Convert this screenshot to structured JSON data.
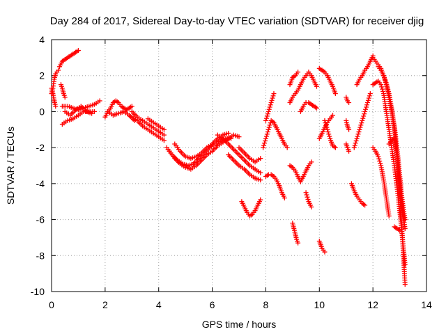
{
  "chart_data": {
    "type": "scatter",
    "title": "Day 284 of 2017, Sidereal Day-to-day VTEC variation (SDTVAR) for receiver djig",
    "xlabel": "GPS time / hours",
    "ylabel": "SDTVAR / TECUs",
    "xlim": [
      0,
      14
    ],
    "ylim": [
      -10,
      4
    ],
    "xticks": [
      "0",
      "2",
      "4",
      "6",
      "8",
      "10",
      "12",
      "14"
    ],
    "yticks": [
      "4",
      "2",
      "0",
      "-2",
      "-4",
      "-6",
      "-8",
      "-10"
    ],
    "grid": true,
    "marker": "+",
    "color": "#ff0000",
    "series": [
      {
        "x": [
          0.0,
          0.05,
          0.1,
          0.15,
          0.2,
          0.25
        ],
        "y": [
          1.0,
          1.3,
          1.8,
          2.1,
          2.2,
          2.3
        ]
      },
      {
        "x": [
          0.0,
          0.05,
          0.1,
          0.15
        ],
        "y": [
          1.3,
          1.0,
          0.6,
          0.3
        ]
      },
      {
        "x": [
          0.3,
          0.4,
          0.5,
          0.6,
          0.7,
          0.8,
          0.9,
          1.0
        ],
        "y": [
          2.5,
          2.8,
          2.9,
          3.0,
          3.1,
          3.2,
          3.3,
          3.4
        ]
      },
      {
        "x": [
          0.35,
          0.4,
          0.45,
          0.5
        ],
        "y": [
          1.5,
          1.3,
          1.0,
          0.8
        ]
      },
      {
        "x": [
          0.4,
          0.6,
          0.8,
          1.0,
          1.2,
          1.4,
          1.6,
          1.8
        ],
        "y": [
          0.3,
          0.3,
          0.2,
          0.1,
          0.2,
          0.3,
          0.4,
          0.6
        ]
      },
      {
        "x": [
          0.4,
          0.6,
          0.8,
          1.0,
          1.2,
          1.4,
          1.6
        ],
        "y": [
          -0.7,
          -0.5,
          -0.4,
          -0.2,
          0.0,
          0.0,
          0.0
        ]
      },
      {
        "x": [
          0.5,
          0.7,
          0.9,
          1.1,
          1.3,
          1.5
        ],
        "y": [
          0.0,
          -0.2,
          0.1,
          0.3,
          0.0,
          -0.1
        ]
      },
      {
        "x": [
          2.0,
          2.1,
          2.2,
          2.3,
          2.4,
          2.5,
          2.6,
          2.7,
          2.8,
          2.9,
          3.0
        ],
        "y": [
          -0.3,
          0.0,
          0.2,
          0.5,
          0.6,
          0.5,
          0.3,
          0.2,
          0.1,
          0.2,
          0.3
        ]
      },
      {
        "x": [
          2.1,
          2.3,
          2.5,
          2.7,
          2.9,
          3.1
        ],
        "y": [
          0.0,
          -0.2,
          -0.1,
          0.0,
          -0.2,
          -0.5
        ]
      },
      {
        "x": [
          3.0,
          3.2,
          3.4,
          3.6,
          3.8,
          4.0,
          4.2
        ],
        "y": [
          0.0,
          -0.3,
          -0.5,
          -0.7,
          -0.9,
          -1.1,
          -1.3
        ]
      },
      {
        "x": [
          3.0,
          3.2,
          3.4,
          3.6,
          3.8,
          4.0,
          4.2
        ],
        "y": [
          -0.3,
          -0.5,
          -0.8,
          -1.0,
          -1.2,
          -1.4,
          -1.6
        ]
      },
      {
        "x": [
          3.6,
          3.8,
          4.0,
          4.2
        ],
        "y": [
          -0.4,
          -0.6,
          -0.8,
          -1.0
        ]
      },
      {
        "x": [
          4.3,
          4.5,
          4.7,
          4.9,
          5.1,
          5.3,
          5.5,
          5.7,
          5.9,
          6.1,
          6.3,
          6.5,
          6.7
        ],
        "y": [
          -2.0,
          -2.4,
          -2.7,
          -2.9,
          -3.0,
          -2.9,
          -2.6,
          -2.3,
          -2.0,
          -1.8,
          -1.6,
          -1.5,
          -1.5
        ]
      },
      {
        "x": [
          4.4,
          4.6,
          4.8,
          5.0,
          5.2,
          5.4,
          5.6,
          5.8,
          6.0,
          6.2,
          6.4,
          6.6,
          6.8,
          7.0
        ],
        "y": [
          -2.2,
          -2.6,
          -2.9,
          -3.1,
          -3.2,
          -3.0,
          -2.7,
          -2.4,
          -2.2,
          -1.9,
          -1.7,
          -1.5,
          -1.3,
          -1.4
        ]
      },
      {
        "x": [
          4.6,
          4.8,
          5.0,
          5.2,
          5.4,
          5.6,
          5.8,
          6.0,
          6.2,
          6.4,
          6.6
        ],
        "y": [
          -1.8,
          -2.2,
          -2.5,
          -2.6,
          -2.5,
          -2.3,
          -2.0,
          -1.8,
          -1.5,
          -1.3,
          -1.2
        ]
      },
      {
        "x": [
          6.2,
          6.4,
          6.6,
          6.8,
          7.0,
          7.2,
          7.4,
          7.6,
          7.8
        ],
        "y": [
          -1.3,
          -1.5,
          -1.8,
          -2.1,
          -2.4,
          -2.7,
          -3.0,
          -3.2,
          -3.4
        ]
      },
      {
        "x": [
          6.6,
          6.8,
          7.0,
          7.2,
          7.4,
          7.6,
          7.8
        ],
        "y": [
          -2.4,
          -2.7,
          -3.0,
          -3.2,
          -3.5,
          -3.7,
          -3.8
        ]
      },
      {
        "x": [
          7.0,
          7.2,
          7.4,
          7.6,
          7.8
        ],
        "y": [
          -2.0,
          -2.3,
          -2.6,
          -2.8,
          -2.6
        ]
      },
      {
        "x": [
          7.1,
          7.2,
          7.3,
          7.4,
          7.5,
          7.6,
          7.7,
          7.8
        ],
        "y": [
          -5.0,
          -5.3,
          -5.6,
          -5.8,
          -5.7,
          -5.5,
          -5.2,
          -4.9
        ]
      },
      {
        "x": [
          7.9,
          8.0,
          8.1,
          8.2,
          8.3,
          8.4,
          8.5,
          8.6,
          8.7,
          8.8
        ],
        "y": [
          -2.0,
          -1.5,
          -1.0,
          -0.5,
          -0.6,
          -0.9,
          -1.2,
          -1.5,
          -1.8,
          -2.0
        ]
      },
      {
        "x": [
          8.0,
          8.1,
          8.2,
          8.3,
          8.4,
          8.5,
          8.6,
          8.7
        ],
        "y": [
          -3.6,
          -3.5,
          -3.5,
          -3.6,
          -3.8,
          -4.1,
          -4.5,
          -4.8
        ]
      },
      {
        "x": [
          8.0,
          8.1,
          8.2,
          8.3
        ],
        "y": [
          -0.5,
          0.0,
          0.5,
          1.0
        ]
      },
      {
        "x": [
          8.9,
          9.0,
          9.1,
          9.2,
          9.3,
          9.4,
          9.5,
          9.6,
          9.7,
          9.8,
          9.9
        ],
        "y": [
          0.5,
          0.8,
          1.0,
          1.2,
          1.5,
          1.8,
          2.0,
          2.2,
          2.0,
          1.7,
          1.4
        ]
      },
      {
        "x": [
          8.9,
          9.0,
          9.1,
          9.2
        ],
        "y": [
          1.5,
          1.9,
          2.0,
          2.2
        ]
      },
      {
        "x": [
          8.9,
          9.0,
          9.1,
          9.2,
          9.3,
          9.4,
          9.5,
          9.6,
          9.7
        ],
        "y": [
          -3.0,
          -3.1,
          -3.3,
          -3.6,
          -3.9,
          -3.6,
          -3.3,
          -3.0,
          -2.8
        ]
      },
      {
        "x": [
          9.0,
          9.05,
          9.1,
          9.15,
          9.2
        ],
        "y": [
          -6.2,
          -6.5,
          -6.8,
          -7.1,
          -7.3
        ]
      },
      {
        "x": [
          9.3,
          9.4,
          9.5,
          9.6,
          9.7,
          9.8,
          9.9
        ],
        "y": [
          0.0,
          0.3,
          0.5,
          0.5,
          0.4,
          0.3,
          0.2
        ]
      },
      {
        "x": [
          9.5,
          9.6,
          9.7
        ],
        "y": [
          -4.5,
          -5.0,
          -5.3
        ]
      },
      {
        "x": [
          10.0,
          10.1,
          10.2,
          10.3,
          10.4,
          10.5,
          10.6
        ],
        "y": [
          2.4,
          2.3,
          2.2,
          2.0,
          1.7,
          1.4,
          1.0
        ]
      },
      {
        "x": [
          10.0,
          10.1,
          10.2,
          10.3,
          10.4,
          10.5
        ],
        "y": [
          -1.5,
          -1.2,
          -0.9,
          -0.6,
          -0.4,
          -0.2
        ]
      },
      {
        "x": [
          10.0,
          10.05,
          10.1,
          10.15,
          10.2
        ],
        "y": [
          -7.2,
          -7.4,
          -7.6,
          -7.7,
          -7.8
        ]
      },
      {
        "x": [
          10.2,
          10.3,
          10.4,
          10.5,
          10.6
        ],
        "y": [
          -0.5,
          -1.0,
          -1.5,
          -1.9,
          -2.0
        ]
      },
      {
        "x": [
          11.0,
          11.05,
          11.1
        ],
        "y": [
          0.8,
          0.6,
          0.5
        ]
      },
      {
        "x": [
          11.0,
          11.05,
          11.1
        ],
        "y": [
          -0.5,
          -0.8,
          -1.0
        ]
      },
      {
        "x": [
          11.0,
          11.05,
          11.1
        ],
        "y": [
          -1.8,
          -2.0,
          -2.2
        ]
      },
      {
        "x": [
          11.2,
          11.3,
          11.4,
          11.5,
          11.6,
          11.7
        ],
        "y": [
          -4.0,
          -4.4,
          -4.7,
          -4.9,
          -5.1,
          -5.2
        ]
      },
      {
        "x": [
          11.3,
          11.4,
          11.5,
          11.6,
          11.7,
          11.8,
          11.9
        ],
        "y": [
          -2.0,
          -1.5,
          -1.0,
          -0.5,
          0.0,
          0.5,
          1.0
        ]
      },
      {
        "x": [
          11.4,
          11.5,
          11.6,
          11.7,
          11.8,
          11.9,
          12.0
        ],
        "y": [
          1.5,
          1.8,
          2.0,
          2.3,
          2.5,
          2.8,
          3.1
        ]
      },
      {
        "x": [
          12.0,
          12.1,
          12.2,
          12.3,
          12.4,
          12.5,
          12.6,
          12.7,
          12.8,
          12.9,
          13.0,
          13.1,
          13.2
        ],
        "y": [
          3.0,
          2.8,
          2.6,
          2.4,
          2.0,
          1.5,
          0.8,
          0.0,
          -1.0,
          -2.5,
          -4.0,
          -5.5,
          -6.5
        ]
      },
      {
        "x": [
          12.0,
          12.1,
          12.2,
          12.3,
          12.4,
          12.5,
          12.6,
          12.7,
          12.8,
          12.9,
          13.0,
          13.1,
          13.2
        ],
        "y": [
          1.5,
          1.6,
          1.7,
          1.5,
          1.0,
          0.0,
          -1.0,
          -2.0,
          -3.0,
          -4.2,
          -5.5,
          -7.0,
          -8.5
        ]
      },
      {
        "x": [
          12.2,
          12.3,
          12.4,
          12.5,
          12.6,
          12.7,
          12.8,
          12.9,
          13.0,
          13.1,
          13.2
        ],
        "y": [
          2.5,
          2.3,
          2.0,
          1.6,
          1.0,
          0.2,
          -0.8,
          -2.0,
          -3.5,
          -5.0,
          -6.0
        ]
      },
      {
        "x": [
          12.0,
          12.1,
          12.2,
          12.3,
          12.4,
          12.5,
          12.6
        ],
        "y": [
          -2.0,
          -2.2,
          -2.5,
          -3.0,
          -3.8,
          -4.8,
          -5.8
        ]
      },
      {
        "x": [
          12.6,
          12.7,
          12.8,
          12.9,
          13.0,
          13.1,
          13.2
        ],
        "y": [
          -1.8,
          -1.6,
          -1.5,
          -2.5,
          -4.5,
          -7.0,
          -9.6
        ]
      },
      {
        "x": [
          12.8,
          12.9,
          13.0
        ],
        "y": [
          -6.4,
          -6.5,
          -6.6
        ]
      }
    ]
  }
}
